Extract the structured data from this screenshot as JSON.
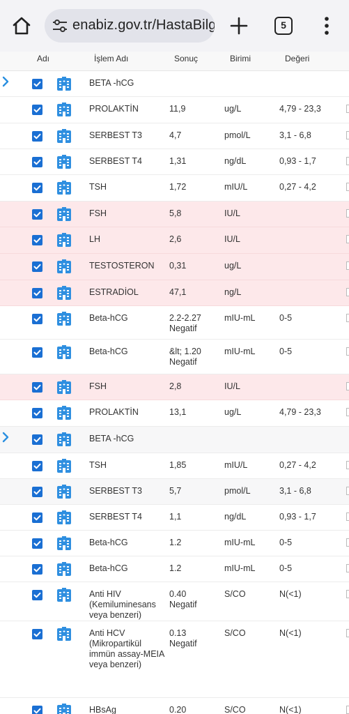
{
  "browser": {
    "url": "enabiz.gov.tr/HastaBilgileri",
    "tab_count": "5",
    "icons": [
      "home-icon",
      "site-settings-icon",
      "new-tab-plus-icon",
      "tab-switcher-icon",
      "overflow-menu-icon"
    ]
  },
  "table": {
    "headers": {
      "col1": "Adı",
      "col2": "İşlem Adı",
      "col3": "Sonuç",
      "col4": "Birimi",
      "col5": "Değeri"
    },
    "rows": [
      {
        "name": "BETA -hCG",
        "result": "",
        "unit": "",
        "ref": "",
        "group": true,
        "tint": "none"
      },
      {
        "name": "PROLAKTİN",
        "result": "11,9",
        "unit": "ug/L",
        "ref": "4,79 - 23,3",
        "group": false,
        "tint": "none"
      },
      {
        "name": "SERBEST T3",
        "result": "4,7",
        "unit": "pmol/L",
        "ref": "3,1 - 6,8",
        "group": false,
        "tint": "none"
      },
      {
        "name": "SERBEST T4",
        "result": "1,31",
        "unit": "ng/dL",
        "ref": "0,93 - 1,7",
        "group": false,
        "tint": "none"
      },
      {
        "name": "TSH",
        "result": "1,72",
        "unit": "mIU/L",
        "ref": "0,27 - 4,2",
        "group": false,
        "tint": "none"
      },
      {
        "name": "FSH",
        "result": "5,8",
        "unit": "IU/L",
        "ref": "",
        "group": false,
        "tint": "pink"
      },
      {
        "name": "LH",
        "result": "2,6",
        "unit": "IU/L",
        "ref": "",
        "group": false,
        "tint": "pink"
      },
      {
        "name": "TESTOSTERON",
        "result": "0,31",
        "unit": "ug/L",
        "ref": "",
        "group": false,
        "tint": "pink"
      },
      {
        "name": "ESTRADİOL",
        "result": "47,1",
        "unit": "ng/L",
        "ref": "",
        "group": false,
        "tint": "pink"
      },
      {
        "name": "Beta-hCG",
        "result": "2.2-2.27 Negatif",
        "unit": "mIU-mL",
        "ref": "0-5",
        "group": false,
        "tint": "none"
      },
      {
        "name": "Beta-hCG",
        "result": "&lt; 1.20 Negatif",
        "unit": "mIU-mL",
        "ref": "0-5",
        "group": false,
        "tint": "none"
      },
      {
        "name": "FSH",
        "result": "2,8",
        "unit": "IU/L",
        "ref": "",
        "group": false,
        "tint": "pink"
      },
      {
        "name": "PROLAKTİN",
        "result": "13,1",
        "unit": "ug/L",
        "ref": "4,79 - 23,3",
        "group": false,
        "tint": "none"
      },
      {
        "name": "BETA -hCG",
        "result": "",
        "unit": "",
        "ref": "",
        "group": true,
        "tint": "alt"
      },
      {
        "name": "TSH",
        "result": "1,85",
        "unit": "mIU/L",
        "ref": "0,27 - 4,2",
        "group": false,
        "tint": "none"
      },
      {
        "name": "SERBEST T3",
        "result": "5,7",
        "unit": "pmol/L",
        "ref": "3,1 - 6,8",
        "group": false,
        "tint": "alt"
      },
      {
        "name": "SERBEST T4",
        "result": "1,1",
        "unit": "ng/dL",
        "ref": "0,93 - 1,7",
        "group": false,
        "tint": "none"
      },
      {
        "name": "Beta-hCG",
        "result": "1.2",
        "unit": "mIU-mL",
        "ref": "0-5",
        "group": false,
        "tint": "none"
      },
      {
        "name": "Beta-hCG",
        "result": "1.2",
        "unit": "mIU-mL",
        "ref": "0-5",
        "group": false,
        "tint": "none"
      },
      {
        "name": "Anti HIV (Kemiluminesans veya benzeri)",
        "result": "0.40 Negatif",
        "unit": "S/CO",
        "ref": "N(<1)",
        "group": false,
        "tint": "none"
      },
      {
        "name": "Anti HCV (Mikropartikül immün assay-MEIA veya benzeri)",
        "result": "0.13 Negatif",
        "unit": "S/CO",
        "ref": "N(<1)",
        "group": false,
        "tint": "none"
      },
      {
        "name": "HBsAg",
        "result": "0.20",
        "unit": "S/CO",
        "ref": "N(<1)",
        "group": false,
        "tint": "none"
      }
    ]
  },
  "colors": {
    "checkbox": "#1a6fd3",
    "expander": "#2a8fe0",
    "pink_row": "#fde8ea",
    "building_icon": "#2f8fe0"
  }
}
